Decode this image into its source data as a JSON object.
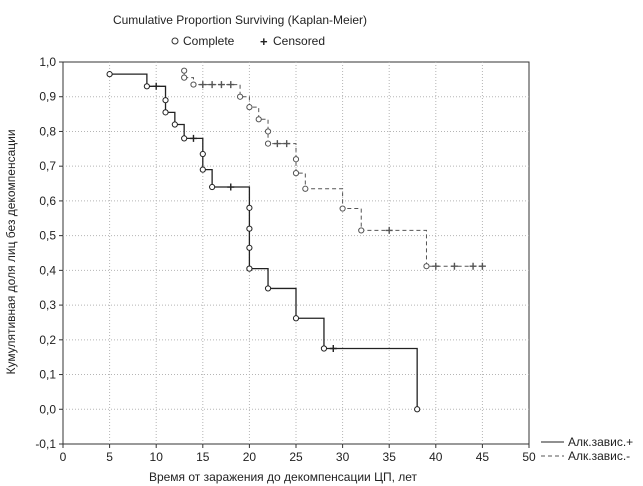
{
  "chart_data": {
    "type": "line",
    "title": "Cumulative Proportion Surviving (Kaplan-Meier)",
    "legend_top": {
      "complete_label": "Complete",
      "censored_label": "Censored"
    },
    "xlabel": "Время от заражения до декомпенсации ЦП, лет",
    "ylabel": "Кумулятивная доля лиц без декомпенсации",
    "xlim": [
      0,
      50
    ],
    "ylim": [
      -0.1,
      1.0
    ],
    "x_ticks": [
      0,
      5,
      10,
      15,
      20,
      25,
      30,
      35,
      40,
      45,
      50
    ],
    "x_tick_labels": [
      "0",
      "5",
      "10",
      "15",
      "20",
      "25",
      "30",
      "35",
      "40",
      "45",
      "50"
    ],
    "y_ticks": [
      -0.1,
      0.0,
      0.1,
      0.2,
      0.3,
      0.4,
      0.5,
      0.6,
      0.7,
      0.8,
      0.9,
      1.0
    ],
    "y_tick_labels": [
      "-0,1",
      "0,0",
      "0,1",
      "0,2",
      "0,3",
      "0,4",
      "0,5",
      "0,6",
      "0,7",
      "0,8",
      "0,9",
      "1,0"
    ],
    "grid": true,
    "series": [
      {
        "name": "Алк.завис.+",
        "line_style": "solid",
        "color": "#222222",
        "start_y": 0.965,
        "steps": [
          [
            5,
            0.965
          ],
          [
            9,
            0.93
          ],
          [
            11,
            0.89
          ],
          [
            11,
            0.855
          ],
          [
            12,
            0.82
          ],
          [
            13,
            0.78
          ],
          [
            15,
            0.735
          ],
          [
            15,
            0.69
          ],
          [
            16,
            0.64
          ],
          [
            20,
            0.58
          ],
          [
            20,
            0.52
          ],
          [
            20,
            0.465
          ],
          [
            20,
            0.405
          ],
          [
            22,
            0.348
          ],
          [
            25,
            0.262
          ],
          [
            28,
            0.175
          ],
          [
            38,
            0.0
          ]
        ],
        "complete": [
          [
            5,
            0.965
          ],
          [
            9,
            0.93
          ],
          [
            11,
            0.89
          ],
          [
            11,
            0.855
          ],
          [
            12,
            0.82
          ],
          [
            13,
            0.78
          ],
          [
            15,
            0.735
          ],
          [
            15,
            0.69
          ],
          [
            16,
            0.64
          ],
          [
            20,
            0.58
          ],
          [
            20,
            0.52
          ],
          [
            20,
            0.465
          ],
          [
            20,
            0.405
          ],
          [
            22,
            0.348
          ],
          [
            25,
            0.262
          ],
          [
            28,
            0.175
          ],
          [
            38,
            0.0
          ]
        ],
        "censored": [
          [
            10,
            0.93
          ],
          [
            14,
            0.78
          ],
          [
            18,
            0.64
          ],
          [
            29,
            0.175
          ]
        ]
      },
      {
        "name": "Алк.завис.-",
        "line_style": "dashed",
        "color": "#555555",
        "start_y": 0.975,
        "steps": [
          [
            13,
            0.975
          ],
          [
            13,
            0.955
          ],
          [
            14,
            0.935
          ],
          [
            19,
            0.9
          ],
          [
            20,
            0.87
          ],
          [
            21,
            0.835
          ],
          [
            22,
            0.8
          ],
          [
            22,
            0.765
          ],
          [
            25,
            0.72
          ],
          [
            25,
            0.68
          ],
          [
            26,
            0.635
          ],
          [
            30,
            0.578
          ],
          [
            32,
            0.515
          ],
          [
            39,
            0.412
          ]
        ],
        "complete": [
          [
            13,
            0.975
          ],
          [
            13,
            0.955
          ],
          [
            14,
            0.935
          ],
          [
            19,
            0.9
          ],
          [
            20,
            0.87
          ],
          [
            21,
            0.835
          ],
          [
            22,
            0.8
          ],
          [
            22,
            0.765
          ],
          [
            25,
            0.72
          ],
          [
            25,
            0.68
          ],
          [
            26,
            0.635
          ],
          [
            30,
            0.578
          ],
          [
            32,
            0.515
          ],
          [
            39,
            0.412
          ]
        ],
        "censored": [
          [
            15,
            0.935
          ],
          [
            16,
            0.935
          ],
          [
            17,
            0.935
          ],
          [
            18,
            0.935
          ],
          [
            23,
            0.765
          ],
          [
            24,
            0.765
          ],
          [
            35,
            0.515
          ],
          [
            40,
            0.412
          ],
          [
            42,
            0.412
          ],
          [
            44,
            0.412
          ],
          [
            45,
            0.412
          ]
        ],
        "end_x": 45
      }
    ]
  }
}
